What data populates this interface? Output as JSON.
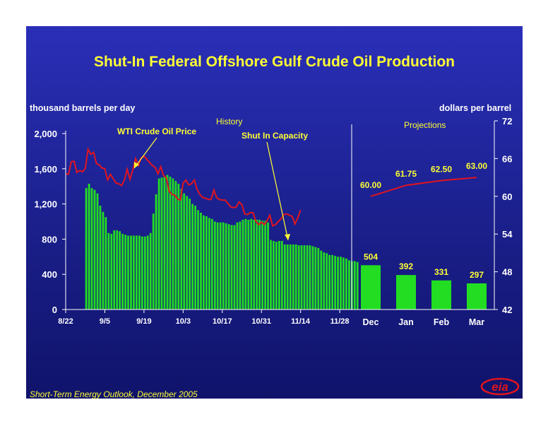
{
  "title": "Shut-In Federal Offshore Gulf Crude Oil Production",
  "left_axis_title": "thousand barrels per day",
  "right_axis_title": "dollars per barrel",
  "footer": "Short-Term Energy Outlook, December 2005",
  "logo_text": "eia",
  "colors": {
    "background": "#1f25a0",
    "title": "#ffff33",
    "bars": "#22dd22",
    "price_line": "#e0141e",
    "text": "#ffffff",
    "annotation": "#ffff33"
  },
  "chart_data": {
    "type": "bar",
    "history_label": "History",
    "projection_label": "Projections",
    "wti_annotation": "WTI Crude Oil Price",
    "shutin_annotation": "Shut In Capacity",
    "left_axis": {
      "min": 0,
      "max": 2000,
      "ticks": [
        0,
        400,
        800,
        1200,
        1600,
        2000
      ],
      "tick_labels": [
        "0",
        "400",
        "800",
        "1,200",
        "1,600",
        "2,000"
      ]
    },
    "right_axis": {
      "min": 42,
      "max": 72,
      "ticks": [
        42,
        48,
        54,
        60,
        66,
        72
      ],
      "tick_labels": [
        "42",
        "48",
        "54",
        "60",
        "66",
        "72"
      ]
    },
    "history_x_labels": [
      "8/22",
      "9/5",
      "9/19",
      "10/3",
      "10/17",
      "10/31",
      "11/14",
      "11/28"
    ],
    "history_shut_in": {
      "name": "Shut In Capacity",
      "start_day": 7,
      "values": [
        1380,
        1430,
        1380,
        1360,
        1320,
        1180,
        1110,
        1050,
        870,
        860,
        900,
        900,
        890,
        860,
        850,
        840,
        840,
        840,
        840,
        840,
        830,
        830,
        840,
        870,
        1090,
        1310,
        1490,
        1500,
        1510,
        1530,
        1510,
        1490,
        1460,
        1430,
        1370,
        1320,
        1290,
        1260,
        1200,
        1180,
        1130,
        1100,
        1070,
        1060,
        1040,
        1030,
        1000,
        990,
        990,
        990,
        980,
        970,
        960,
        960,
        990,
        1000,
        1020,
        1030,
        1020,
        1030,
        1020,
        1020,
        1020,
        1010,
        1010,
        990,
        790,
        780,
        770,
        780,
        780,
        740,
        740,
        740,
        740,
        740,
        730,
        730,
        730,
        730,
        730,
        720,
        710,
        700,
        670,
        650,
        640,
        620,
        620,
        610,
        600,
        600,
        590,
        580,
        560,
        550,
        550,
        540
      ]
    },
    "history_wti": {
      "name": "WTI Crude Oil Price",
      "start_day": 0,
      "values": [
        63.6,
        63.5,
        65.5,
        65.6,
        63.8,
        64.1,
        63.9,
        64.4,
        67.5,
        66.7,
        67.0,
        65.2,
        65.0,
        64.5,
        64.4,
        62.6,
        63.5,
        62.8,
        62.1,
        62.0,
        61.7,
        62.6,
        64.3,
        62.7,
        64.2,
        66.0,
        64.9,
        66.1,
        66.4,
        65.9,
        65.4,
        64.9,
        64.6,
        63.6,
        64.7,
        63.3,
        62.9,
        60.8,
        60.3,
        60.2,
        59.6,
        59.4,
        62.1,
        62.6,
        61.8,
        62.0,
        62.6,
        61.1,
        60.3,
        59.8,
        59.7,
        59.5,
        59.5,
        61.0,
        59.8,
        59.5,
        59.4,
        59.4,
        58.9,
        58.3,
        58.2,
        58.3,
        59.1,
        58.7,
        57.2,
        57.1,
        57.4,
        57.4,
        56.0,
        55.5,
        55.9,
        55.5,
        56.1,
        57.0,
        55.3,
        55.5,
        56.0,
        56.4,
        57.1,
        57.2,
        57.0,
        56.8,
        55.6,
        56.6,
        57.8
      ]
    },
    "projection_categories": [
      "Dec",
      "Jan",
      "Feb",
      "Mar"
    ],
    "projection_shut_in": {
      "name": "Shut In Capacity",
      "values": [
        504,
        392,
        331,
        297
      ],
      "labels": [
        "504",
        "392",
        "331",
        "297"
      ]
    },
    "projection_wti": {
      "name": "WTI Crude Oil Price",
      "values": [
        60.0,
        61.75,
        62.5,
        63.0
      ],
      "labels": [
        "60.00",
        "61.75",
        "62.50",
        "63.00"
      ]
    }
  }
}
